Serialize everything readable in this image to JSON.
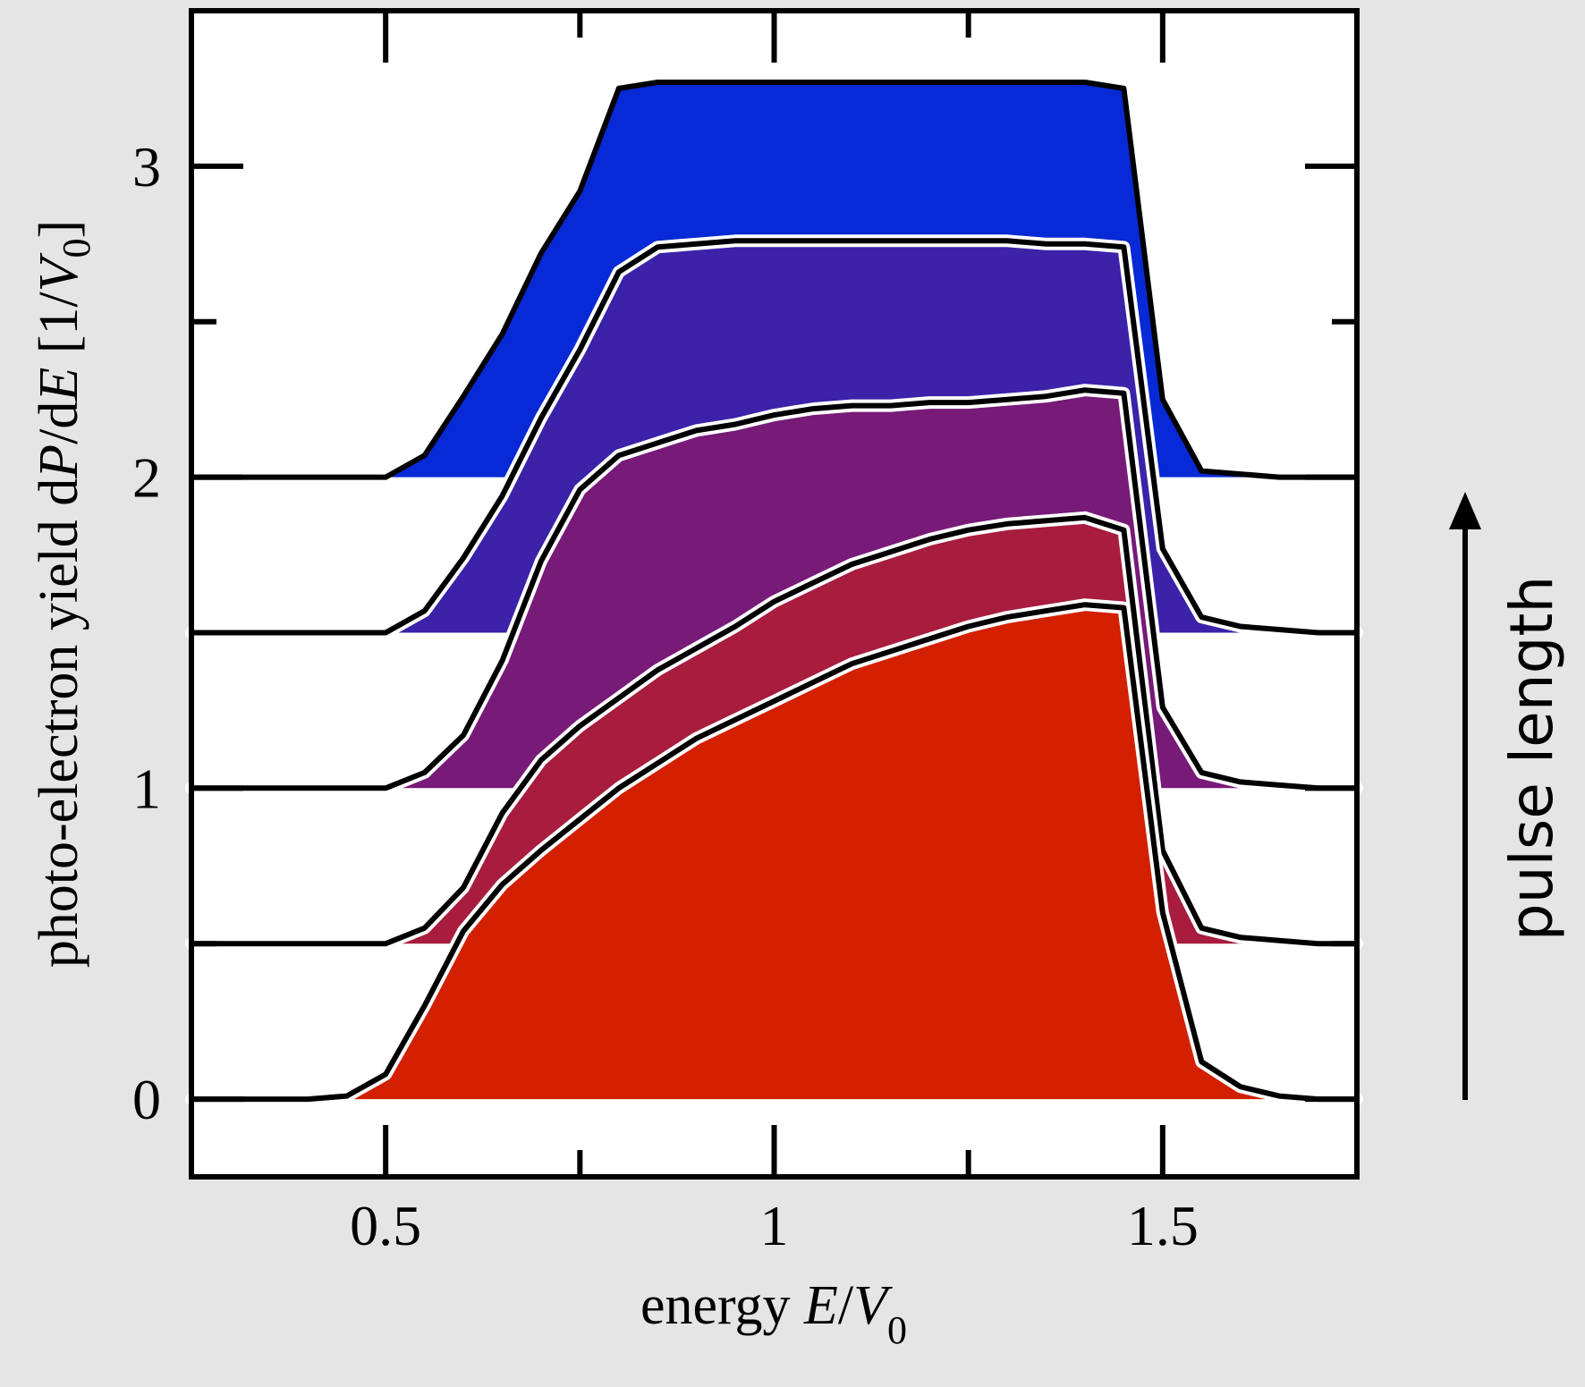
{
  "chart_data": {
    "type": "area",
    "title": "",
    "xlabel": "energy E/V0",
    "ylabel": "photo-electron yield dP/dE [1/V0]",
    "xlabel_parts": {
      "prefix": "energy ",
      "var1": "E",
      "slash": "/",
      "var2": "V",
      "sub": "0"
    },
    "ylabel_parts": {
      "prefix": "photo-electron yield  d",
      "var1": "P",
      "mid": "/d",
      "var2": "E",
      "open": " [1/",
      "var3": "V",
      "sub": "0",
      "close": "]"
    },
    "xlim": [
      0.25,
      1.75
    ],
    "ylim": [
      -0.25,
      3.5
    ],
    "grid": false,
    "x_ticks": [
      0.5,
      0.75,
      1.0,
      1.25,
      1.5
    ],
    "x_tick_labels": [
      "0.5",
      "",
      "1",
      "",
      "1.5"
    ],
    "y_ticks": [
      0,
      0.5,
      1,
      1.5,
      2,
      2.5,
      3
    ],
    "y_tick_labels": [
      "0",
      "",
      "1",
      "",
      "2",
      "",
      "3"
    ],
    "annotation": {
      "text": "pulse length",
      "arrow": "up"
    },
    "x": [
      0.25,
      0.3,
      0.35,
      0.4,
      0.45,
      0.5,
      0.55,
      0.6,
      0.65,
      0.7,
      0.75,
      0.8,
      0.85,
      0.9,
      0.95,
      1.0,
      1.05,
      1.1,
      1.15,
      1.2,
      1.25,
      1.3,
      1.35,
      1.4,
      1.45,
      1.5,
      1.55,
      1.6,
      1.65,
      1.7,
      1.75
    ],
    "series": [
      {
        "offset": 2.0,
        "color": "#0829d6",
        "values": [
          2.0,
          2.0,
          2.0,
          2.0,
          2.0,
          2.0,
          2.07,
          2.26,
          2.46,
          2.72,
          2.92,
          3.25,
          3.27,
          3.27,
          3.27,
          3.27,
          3.27,
          3.27,
          3.27,
          3.27,
          3.27,
          3.27,
          3.27,
          3.27,
          3.25,
          2.25,
          2.02,
          2.01,
          2.0,
          2.0,
          2.0
        ]
      },
      {
        "offset": 1.5,
        "color": "#3b22a8",
        "values": [
          1.5,
          1.5,
          1.5,
          1.5,
          1.5,
          1.5,
          1.57,
          1.74,
          1.94,
          2.19,
          2.41,
          2.66,
          2.74,
          2.75,
          2.76,
          2.76,
          2.76,
          2.76,
          2.76,
          2.76,
          2.76,
          2.76,
          2.75,
          2.75,
          2.74,
          1.77,
          1.55,
          1.52,
          1.51,
          1.5,
          1.5
        ]
      },
      {
        "offset": 1.0,
        "color": "#771a78",
        "values": [
          1.0,
          1.0,
          1.0,
          1.0,
          1.0,
          1.0,
          1.05,
          1.17,
          1.41,
          1.73,
          1.96,
          2.07,
          2.11,
          2.15,
          2.17,
          2.2,
          2.22,
          2.23,
          2.23,
          2.24,
          2.24,
          2.25,
          2.26,
          2.28,
          2.27,
          1.26,
          1.05,
          1.02,
          1.01,
          1.0,
          1.0
        ]
      },
      {
        "offset": 0.5,
        "color": "#a81c3e",
        "values": [
          0.5,
          0.5,
          0.5,
          0.5,
          0.5,
          0.5,
          0.55,
          0.68,
          0.92,
          1.09,
          1.2,
          1.29,
          1.38,
          1.45,
          1.52,
          1.6,
          1.66,
          1.72,
          1.76,
          1.8,
          1.83,
          1.85,
          1.86,
          1.87,
          1.83,
          0.8,
          0.55,
          0.52,
          0.51,
          0.5,
          0.5
        ]
      },
      {
        "offset": 0.0,
        "color": "#d22000",
        "values": [
          0.0,
          0.0,
          0.0,
          0.0,
          0.01,
          0.08,
          0.3,
          0.54,
          0.69,
          0.8,
          0.9,
          1.0,
          1.08,
          1.16,
          1.22,
          1.28,
          1.34,
          1.4,
          1.44,
          1.48,
          1.52,
          1.55,
          1.57,
          1.59,
          1.58,
          0.6,
          0.12,
          0.04,
          0.01,
          0.0,
          0.0
        ]
      }
    ]
  }
}
